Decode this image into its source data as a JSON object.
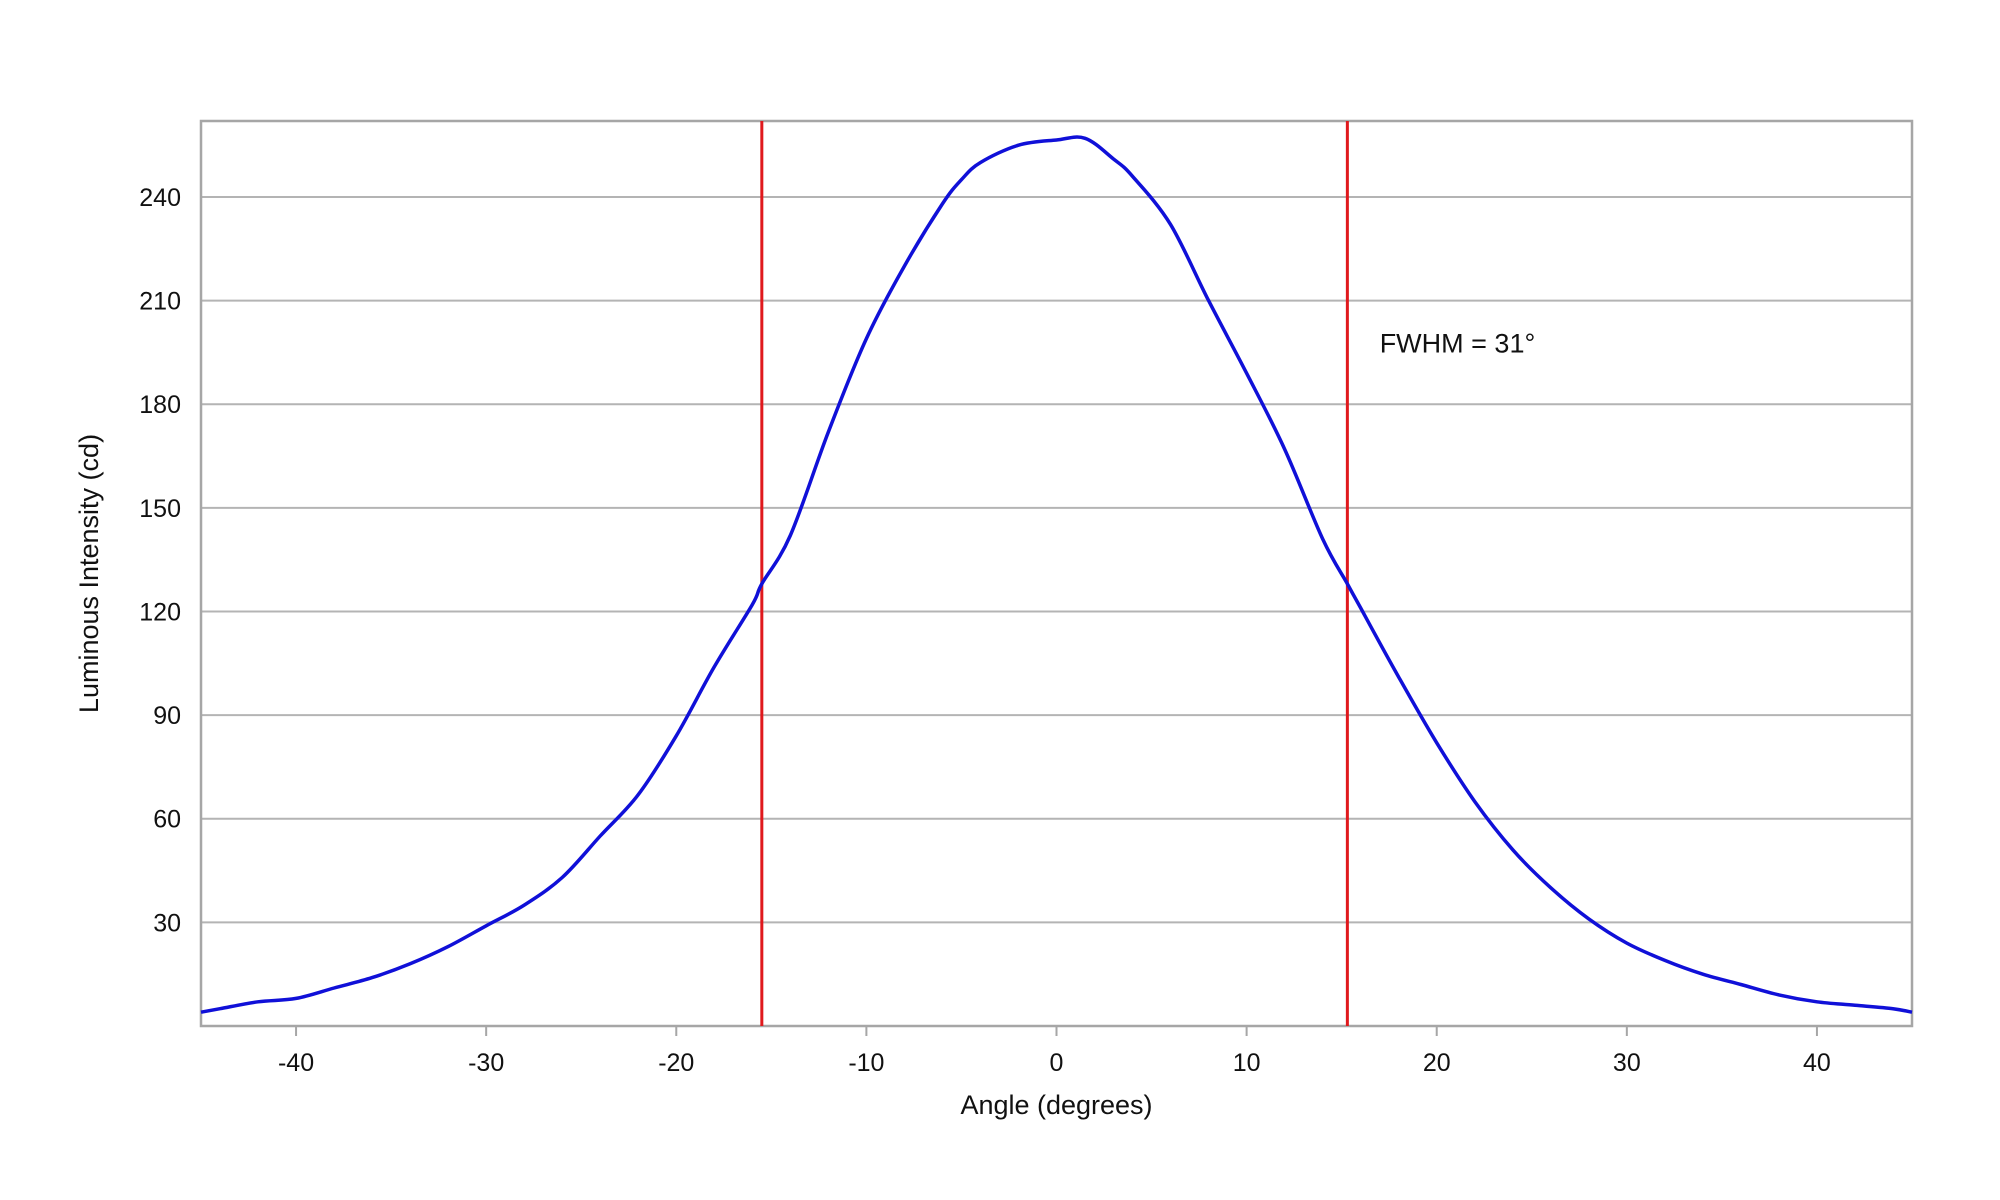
{
  "chart_data": {
    "type": "line",
    "title": "",
    "xlabel": "Angle (degrees)",
    "ylabel": "Luminous Intensity (cd)",
    "xlim": [
      -45,
      45
    ],
    "ylim": [
      0,
      262
    ],
    "x_ticks": [
      -40,
      -30,
      -20,
      -10,
      0,
      10,
      20,
      30,
      40
    ],
    "x_tick_labels": [
      "-40",
      "-30",
      "-20",
      "-10",
      "0",
      "10",
      "20",
      "30",
      "40"
    ],
    "y_ticks": [
      30,
      60,
      90,
      120,
      150,
      180,
      210,
      240
    ],
    "y_tick_labels": [
      "30",
      "60",
      "90",
      "120",
      "150",
      "180",
      "210",
      "240"
    ],
    "grid": "horizontal",
    "legend": "none",
    "series": [
      {
        "color": "#1010d8",
        "x": [
          -45,
          -44,
          -42,
          -40,
          -38,
          -36,
          -34,
          -32,
          -30,
          -28,
          -26,
          -24,
          -22,
          -20,
          -18,
          -16,
          -15.5,
          -14,
          -12,
          -10,
          -8,
          -6,
          -5,
          -4,
          -2,
          0,
          1.5,
          3,
          4,
          6,
          8,
          10,
          12,
          14,
          15.3,
          16,
          18,
          20,
          22,
          24,
          26,
          28,
          30,
          32,
          34,
          36,
          38,
          40,
          42,
          44,
          45
        ],
        "y": [
          4,
          5,
          7,
          8,
          11,
          14,
          18,
          23,
          29,
          35,
          43,
          55,
          67,
          84,
          104,
          122,
          128,
          142,
          172,
          199,
          220,
          238,
          245,
          250,
          255,
          256.5,
          257,
          251,
          246,
          232,
          210,
          189,
          167,
          141,
          128,
          121,
          101,
          82,
          65,
          51,
          40,
          31,
          24,
          19,
          15,
          12,
          9,
          7,
          6,
          5,
          4
        ]
      }
    ],
    "reference_lines": [
      {
        "axis": "x",
        "value": -15.5,
        "color": "#e0191d"
      },
      {
        "axis": "x",
        "value": 15.3,
        "color": "#e0191d"
      }
    ],
    "annotations": [
      {
        "text": "FWHM = 31°",
        "x": 17,
        "y": 195
      }
    ]
  }
}
